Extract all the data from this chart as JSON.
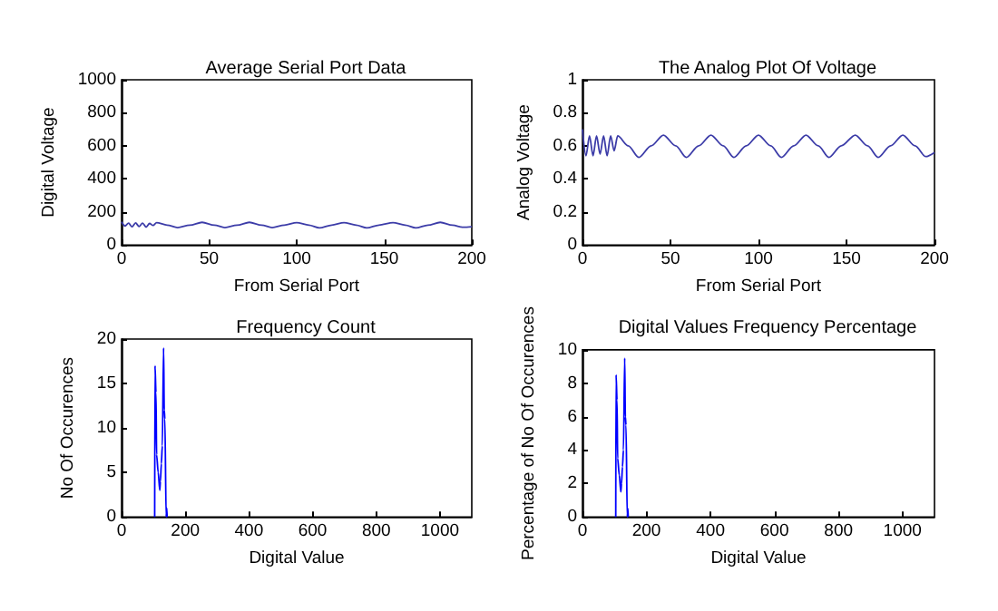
{
  "chart_data": [
    {
      "type": "line",
      "title": "Average Serial Port Data",
      "xlabel": "From Serial Port",
      "ylabel": "Digital Voltage",
      "color": "#3c3ca8",
      "marker": "none",
      "xlim": [
        0,
        200
      ],
      "xticks": [
        0,
        50,
        100,
        150,
        200
      ],
      "ylim": [
        0,
        1000
      ],
      "yticks": [
        0,
        200,
        400,
        600,
        800,
        1000
      ],
      "x": [
        0,
        2,
        4,
        6,
        8,
        10,
        12,
        14,
        16,
        18,
        20,
        26,
        32,
        39,
        46,
        53,
        59,
        66,
        73,
        80,
        86,
        93,
        100,
        107,
        113,
        120,
        127,
        134,
        140,
        147,
        155,
        162,
        168,
        175,
        182,
        189,
        195,
        200
      ],
      "values": [
        140,
        115,
        132,
        110,
        133,
        112,
        132,
        108,
        130,
        118,
        135,
        120,
        105,
        120,
        137,
        120,
        105,
        120,
        137,
        120,
        105,
        120,
        135,
        120,
        103,
        120,
        135,
        120,
        103,
        120,
        135,
        120,
        103,
        120,
        137,
        120,
        107,
        110
      ]
    },
    {
      "type": "line",
      "title": "The Analog Plot Of Voltage",
      "xlabel": "From Serial Port",
      "ylabel": "Analog Voltage",
      "color": "#3c3ca8",
      "marker": "none",
      "xlim": [
        0,
        200
      ],
      "xticks": [
        0,
        50,
        100,
        150,
        200
      ],
      "ylim": [
        0,
        1
      ],
      "yticks": [
        0,
        0.2,
        0.4,
        0.6,
        0.8,
        1
      ],
      "x": [
        0,
        2,
        4,
        6,
        8,
        10,
        12,
        14,
        16,
        18,
        20,
        26,
        32,
        39,
        46,
        53,
        59,
        66,
        73,
        80,
        86,
        93,
        100,
        107,
        113,
        120,
        127,
        134,
        140,
        147,
        155,
        162,
        168,
        175,
        182,
        189,
        195,
        200
      ],
      "values": [
        0.7,
        0.54,
        0.66,
        0.54,
        0.66,
        0.55,
        0.66,
        0.54,
        0.66,
        0.57,
        0.66,
        0.6,
        0.53,
        0.6,
        0.665,
        0.6,
        0.53,
        0.6,
        0.665,
        0.6,
        0.53,
        0.6,
        0.665,
        0.6,
        0.53,
        0.6,
        0.665,
        0.6,
        0.53,
        0.6,
        0.665,
        0.6,
        0.53,
        0.6,
        0.665,
        0.6,
        0.535,
        0.56
      ]
    },
    {
      "type": "line",
      "title": "Frequency Count",
      "xlabel": "Digital Value",
      "ylabel": "No Of Occurences",
      "color": "#0000ff",
      "marker": "none",
      "xlim": [
        0,
        1100
      ],
      "xticks": [
        0,
        200,
        400,
        600,
        800,
        1000
      ],
      "ylim": [
        0,
        20
      ],
      "yticks": [
        0,
        5,
        10,
        15,
        20
      ],
      "x": [
        104,
        105,
        108,
        110,
        115,
        120,
        122,
        125,
        128,
        132,
        134,
        136,
        140,
        142,
        143
      ],
      "values": [
        0,
        17,
        14,
        7,
        5,
        3,
        4,
        6,
        8,
        19,
        12,
        11,
        0,
        1,
        0
      ]
    },
    {
      "type": "line",
      "title": "Digital Values Frequency Percentage",
      "xlabel": "Digital Value",
      "ylabel": "Percentage of No Of Occurences",
      "color": "#0000ff",
      "marker": "none",
      "xlim": [
        0,
        1100
      ],
      "xticks": [
        0,
        200,
        400,
        600,
        800,
        1000
      ],
      "ylim": [
        0,
        10
      ],
      "yticks": [
        0,
        2,
        4,
        6,
        8,
        10
      ],
      "x": [
        104,
        105,
        108,
        110,
        115,
        120,
        122,
        125,
        128,
        132,
        134,
        136,
        140,
        142,
        143
      ],
      "values": [
        0,
        8.5,
        7,
        3.5,
        2.5,
        1.5,
        2,
        3,
        4,
        9.5,
        6,
        5.5,
        0,
        0.5,
        0
      ]
    }
  ]
}
